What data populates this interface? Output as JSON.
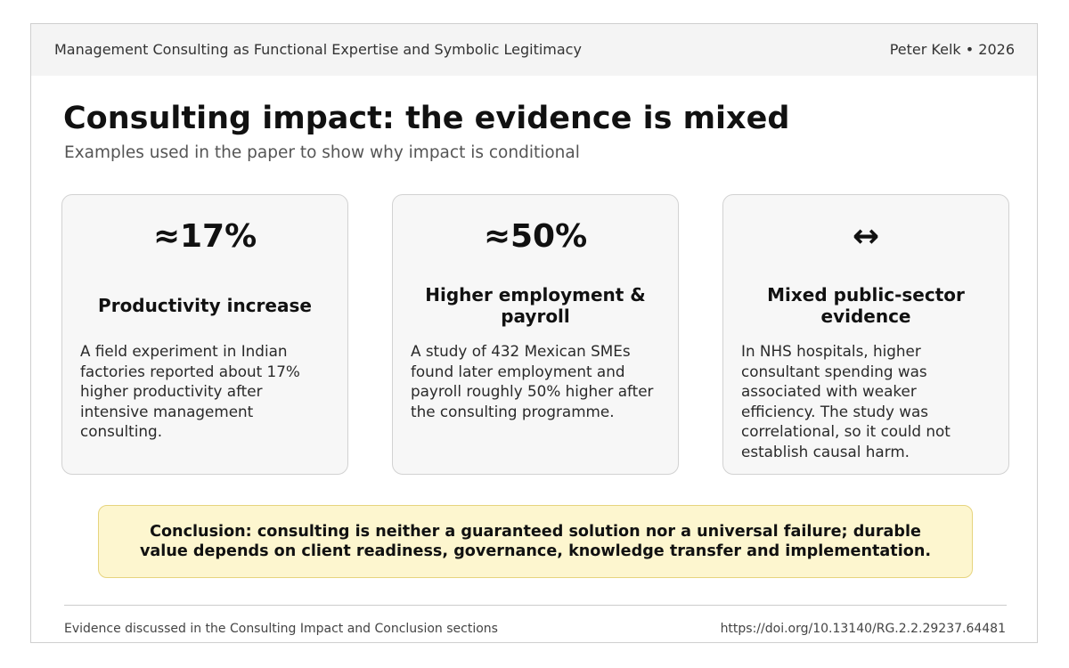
{
  "header": {
    "title": "Management Consulting as Functional Expertise and Symbolic Legitimacy",
    "author_year": "Peter Kelk • 2026"
  },
  "main": {
    "title": "Consulting impact: the evidence is mixed",
    "subtitle": "Examples used in the paper to show why impact is conditional"
  },
  "cards": [
    {
      "stat": "≈17%",
      "label": "Productivity increase",
      "body": "A field experiment in Indian factories reported about 17% higher productivity after intensive management consulting."
    },
    {
      "stat": "≈50%",
      "label": "Higher employment & payroll",
      "body": "A study of 432 Mexican SMEs found later employment and payroll roughly 50% higher after the consulting programme."
    },
    {
      "stat": "↔",
      "label": "Mixed public-sector evidence",
      "body": "In NHS hospitals, higher consultant spending was associated with weaker efficiency. The study was correlational, so it could not establish causal harm."
    }
  ],
  "conclusion": {
    "text": "Conclusion: consulting is neither a guaranteed solution nor a universal failure; durable value depends on client readiness, governance, knowledge transfer and implementation."
  },
  "footer": {
    "left": "Evidence discussed in the Consulting Impact and Conclusion sections",
    "right": "https://doi.org/10.13140/RG.2.2.29237.64481"
  },
  "colors": {
    "header_bg": "#f4f4f4",
    "card_bg": "#f7f7f7",
    "conclusion_bg": "#fdf6cf",
    "conclusion_border": "#e6d47e"
  }
}
